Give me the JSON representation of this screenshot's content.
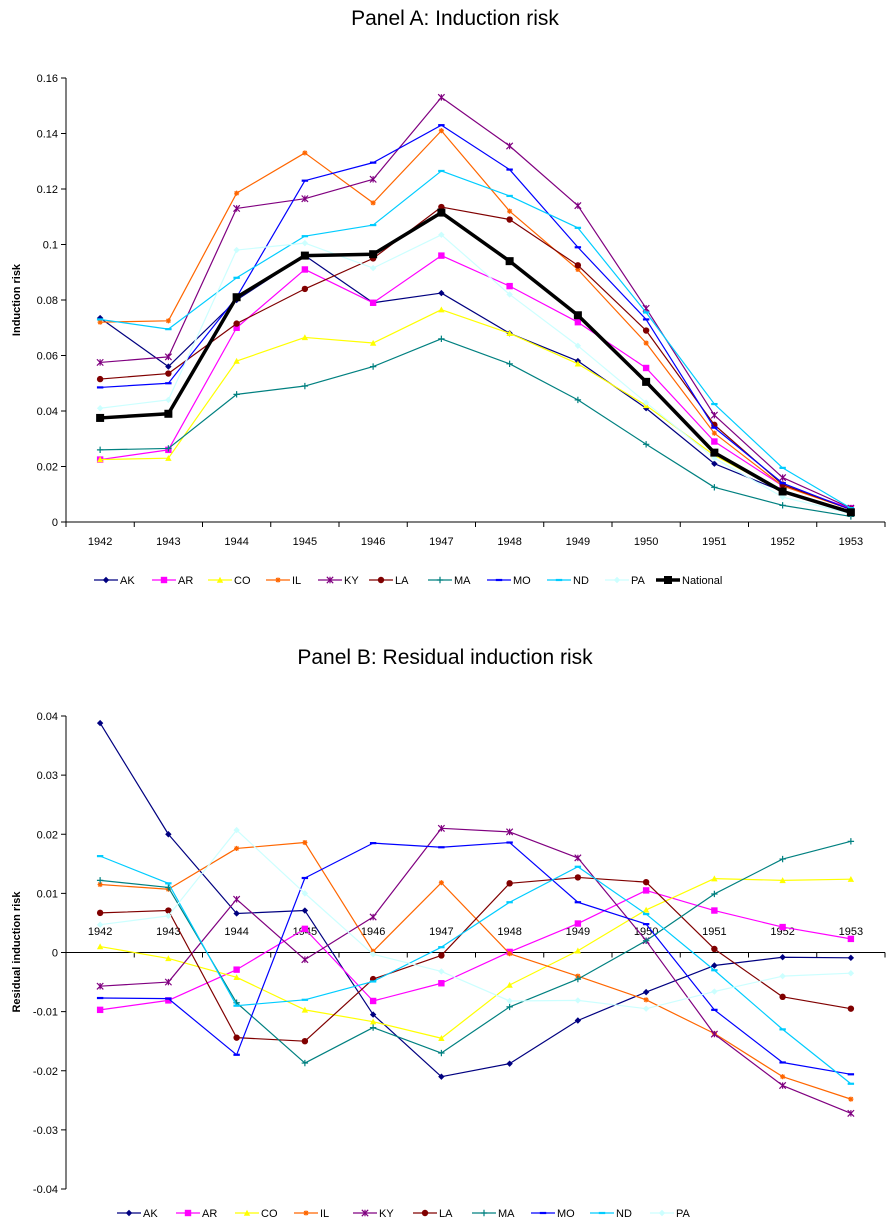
{
  "chart_data": [
    {
      "type": "line",
      "title": "Panel A: Induction risk",
      "xlabel": "",
      "ylabel": "Induction risk",
      "ylim": [
        0,
        0.16
      ],
      "yticks": [
        0,
        0.02,
        0.04,
        0.06,
        0.08,
        0.1,
        0.12,
        0.14,
        0.16
      ],
      "ytick_labels": [
        "0",
        "0.02",
        "0.04",
        "0.06",
        "0.08",
        "0.1",
        "0.12",
        "0.14",
        "0.16"
      ],
      "categories": [
        "1942",
        "1943",
        "1944",
        "1945",
        "1946",
        "1947",
        "1948",
        "1949",
        "1950",
        "1951",
        "1952",
        "1953"
      ],
      "legend_position": "bottom",
      "series": [
        {
          "name": "AK",
          "color": "#000080",
          "marker": "diamond",
          "values": [
            0.0735,
            0.056,
            0.08,
            0.096,
            0.079,
            0.0825,
            0.068,
            0.058,
            0.041,
            0.021,
            0.011,
            0.004
          ]
        },
        {
          "name": "AR",
          "color": "#ff00ff",
          "marker": "square",
          "values": [
            0.0225,
            0.026,
            0.07,
            0.091,
            0.079,
            0.096,
            0.085,
            0.072,
            0.0555,
            0.029,
            0.013,
            0.005
          ]
        },
        {
          "name": "CO",
          "color": "#ffff00",
          "marker": "triangle",
          "values": [
            0.0225,
            0.023,
            0.058,
            0.0665,
            0.0645,
            0.0765,
            0.068,
            0.057,
            0.042,
            0.024,
            0.011,
            0.0035
          ]
        },
        {
          "name": "IL",
          "color": "#ff6600",
          "marker": "star",
          "values": [
            0.072,
            0.0725,
            0.1185,
            0.133,
            0.115,
            0.141,
            0.112,
            0.091,
            0.0645,
            0.032,
            0.013,
            0.0045
          ]
        },
        {
          "name": "KY",
          "color": "#800080",
          "marker": "xstar",
          "values": [
            0.0575,
            0.0595,
            0.113,
            0.1165,
            0.1235,
            0.153,
            0.1355,
            0.114,
            0.077,
            0.0385,
            0.016,
            0.005
          ]
        },
        {
          "name": "LA",
          "color": "#800000",
          "marker": "circle",
          "values": [
            0.0515,
            0.0535,
            0.0715,
            0.084,
            0.095,
            0.1135,
            0.109,
            0.0925,
            0.069,
            0.035,
            0.0135,
            0.0045
          ]
        },
        {
          "name": "MA",
          "color": "#008080",
          "marker": "plus",
          "values": [
            0.026,
            0.0265,
            0.046,
            0.049,
            0.056,
            0.066,
            0.057,
            0.044,
            0.028,
            0.0125,
            0.006,
            0.002
          ]
        },
        {
          "name": "MO",
          "color": "#0000ff",
          "marker": "dash",
          "values": [
            0.0485,
            0.05,
            0.081,
            0.123,
            0.1295,
            0.143,
            0.127,
            0.099,
            0.073,
            0.034,
            0.014,
            0.0045
          ]
        },
        {
          "name": "ND",
          "color": "#00ccff",
          "marker": "dash",
          "values": [
            0.073,
            0.0695,
            0.088,
            0.103,
            0.107,
            0.1265,
            0.1175,
            0.106,
            0.0755,
            0.0425,
            0.0195,
            0.005
          ]
        },
        {
          "name": "PA",
          "color": "#ccffff",
          "marker": "diamond",
          "values": [
            0.041,
            0.044,
            0.098,
            0.1005,
            0.0915,
            0.1035,
            0.082,
            0.0635,
            0.043,
            0.023,
            0.009,
            0.003
          ]
        },
        {
          "name": "National",
          "color": "#000000",
          "marker": "square",
          "bold": true,
          "values": [
            0.0375,
            0.039,
            0.081,
            0.096,
            0.0965,
            0.1115,
            0.094,
            0.0745,
            0.0505,
            0.025,
            0.011,
            0.0035
          ]
        }
      ]
    },
    {
      "type": "line",
      "title": "Panel B: Residual induction risk",
      "xlabel": "",
      "ylabel": "Residual induction risk",
      "ylim": [
        -0.04,
        0.04
      ],
      "yticks": [
        -0.04,
        -0.03,
        -0.02,
        -0.01,
        0,
        0.01,
        0.02,
        0.03,
        0.04
      ],
      "ytick_labels": [
        "-0.04",
        "-0.03",
        "-0.02",
        "-0.01",
        "0",
        "0.01",
        "0.02",
        "0.03",
        "0.04"
      ],
      "categories": [
        "1942",
        "1943",
        "1944",
        "1945",
        "1946",
        "1947",
        "1948",
        "1949",
        "1950",
        "1951",
        "1952",
        "1953"
      ],
      "legend_position": "bottom",
      "series": [
        {
          "name": "AK",
          "color": "#000080",
          "marker": "diamond",
          "values": [
            0.0388,
            0.02,
            0.0066,
            0.0071,
            -0.0105,
            -0.021,
            -0.0188,
            -0.0115,
            -0.0067,
            -0.0022,
            -0.0008,
            -0.0009
          ]
        },
        {
          "name": "AR",
          "color": "#ff00ff",
          "marker": "square",
          "values": [
            -0.0097,
            -0.0081,
            -0.0029,
            0.004,
            -0.0082,
            -0.0052,
            0.0001,
            0.0049,
            0.0105,
            0.0071,
            0.0043,
            0.0023
          ]
        },
        {
          "name": "CO",
          "color": "#ffff00",
          "marker": "triangle",
          "values": [
            0.001,
            -0.001,
            -0.0042,
            -0.0097,
            -0.0117,
            -0.0145,
            -0.0055,
            0.0003,
            0.0072,
            0.0125,
            0.0122,
            0.0124
          ]
        },
        {
          "name": "IL",
          "color": "#ff6600",
          "marker": "star",
          "values": [
            0.0115,
            0.0107,
            0.0176,
            0.0186,
            0.0002,
            0.0118,
            -0.0002,
            -0.004,
            -0.008,
            -0.0137,
            -0.021,
            -0.0248
          ]
        },
        {
          "name": "KY",
          "color": "#800080",
          "marker": "xstar",
          "values": [
            -0.0057,
            -0.005,
            0.009,
            -0.0012,
            0.006,
            0.021,
            0.0204,
            0.016,
            0.002,
            -0.0138,
            -0.0225,
            -0.0272
          ]
        },
        {
          "name": "LA",
          "color": "#800000",
          "marker": "circle",
          "values": [
            0.0067,
            0.0071,
            -0.0144,
            -0.015,
            -0.0045,
            -0.0005,
            0.0117,
            0.0127,
            0.0119,
            0.0006,
            -0.0075,
            -0.0095
          ]
        },
        {
          "name": "MA",
          "color": "#008080",
          "marker": "plus",
          "values": [
            0.0122,
            0.011,
            -0.0085,
            -0.0187,
            -0.0127,
            -0.017,
            -0.0092,
            -0.0045,
            0.002,
            0.0099,
            0.0158,
            0.0188
          ]
        },
        {
          "name": "MO",
          "color": "#0000ff",
          "marker": "dash",
          "values": [
            -0.0077,
            -0.0078,
            -0.0173,
            0.0126,
            0.0185,
            0.0178,
            0.0186,
            0.0085,
            0.0048,
            -0.0097,
            -0.0186,
            -0.0206
          ]
        },
        {
          "name": "ND",
          "color": "#00ccff",
          "marker": "dash",
          "values": [
            0.0163,
            0.0117,
            -0.009,
            -0.008,
            -0.0049,
            0.0009,
            0.0085,
            0.0145,
            0.0065,
            -0.003,
            -0.013,
            -0.0222
          ]
        },
        {
          "name": "PA",
          "color": "#ccffff",
          "marker": "diamond",
          "values": [
            0.0047,
            0.0062,
            0.0207,
            0.01,
            -0.0003,
            -0.0032,
            -0.0082,
            -0.0081,
            -0.0095,
            -0.0066,
            -0.004,
            -0.0035
          ]
        }
      ]
    }
  ]
}
